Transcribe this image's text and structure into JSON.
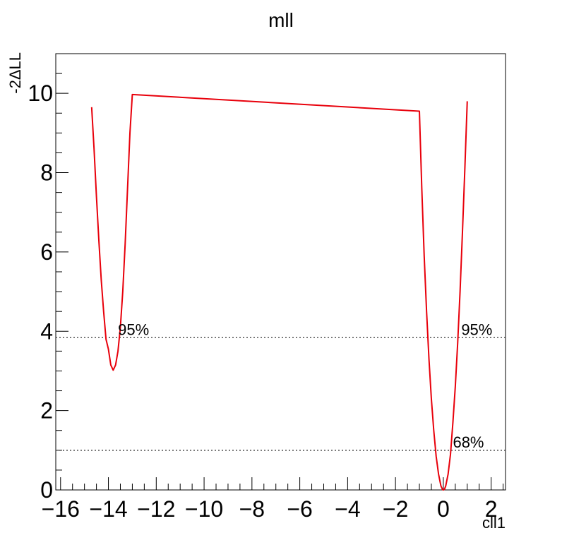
{
  "chart_data": {
    "type": "line",
    "title": "mll",
    "xlabel": "cll1",
    "ylabel": "-2ΔLL",
    "xlim": [
      -16.2,
      2.6
    ],
    "ylim": [
      0,
      11
    ],
    "x_ticks": [
      -16,
      -14,
      -12,
      -10,
      -8,
      -6,
      -4,
      -2,
      0,
      2
    ],
    "x_tick_labels": [
      "−16",
      "−14",
      "−12",
      "−10",
      "−8",
      "−6",
      "−4",
      "−2",
      "0",
      "2"
    ],
    "y_ticks": [
      0,
      2,
      4,
      6,
      8,
      10
    ],
    "y_tick_labels": [
      "0",
      "2",
      "4",
      "6",
      "8",
      "10"
    ],
    "grid": false,
    "series": [
      {
        "color": "#e8000b",
        "points": [
          [
            -14.7,
            9.65
          ],
          [
            -14.6,
            8.6
          ],
          [
            -14.5,
            7.4
          ],
          [
            -14.4,
            6.3
          ],
          [
            -14.3,
            5.3
          ],
          [
            -14.2,
            4.5
          ],
          [
            -14.1,
            3.8
          ],
          [
            -14.0,
            3.55
          ],
          [
            -13.95,
            3.35
          ],
          [
            -13.9,
            3.15
          ],
          [
            -13.8,
            3.02
          ],
          [
            -13.7,
            3.15
          ],
          [
            -13.6,
            3.5
          ],
          [
            -13.5,
            4.1
          ],
          [
            -13.4,
            5.0
          ],
          [
            -13.3,
            6.2
          ],
          [
            -13.2,
            7.6
          ],
          [
            -13.1,
            9.0
          ],
          [
            -13.0,
            9.97
          ],
          [
            -1.0,
            9.55
          ],
          [
            -0.9,
            7.6
          ],
          [
            -0.8,
            5.9
          ],
          [
            -0.7,
            4.5
          ],
          [
            -0.6,
            3.3
          ],
          [
            -0.5,
            2.3
          ],
          [
            -0.4,
            1.5
          ],
          [
            -0.3,
            0.85
          ],
          [
            -0.2,
            0.4
          ],
          [
            -0.1,
            0.1
          ],
          [
            -0.03,
            0.01
          ],
          [
            0.0,
            0.0
          ],
          [
            0.05,
            0.02
          ],
          [
            0.1,
            0.1
          ],
          [
            0.2,
            0.4
          ],
          [
            0.3,
            0.9
          ],
          [
            0.4,
            1.7
          ],
          [
            0.5,
            2.6
          ],
          [
            0.6,
            3.7
          ],
          [
            0.7,
            5.0
          ],
          [
            0.8,
            6.5
          ],
          [
            0.9,
            8.1
          ],
          [
            1.0,
            9.8
          ]
        ]
      }
    ],
    "reference_lines": [
      {
        "y": 3.84,
        "label": "95%",
        "style": "dotted"
      },
      {
        "y": 1.0,
        "label": "68%",
        "style": "dotted"
      }
    ],
    "annotations": [
      {
        "text": "95%",
        "x": -13.6,
        "y": 3.84
      },
      {
        "text": "95%",
        "x": 0.75,
        "y": 3.84
      },
      {
        "text": "68%",
        "x": 0.4,
        "y": 1.0
      }
    ]
  }
}
